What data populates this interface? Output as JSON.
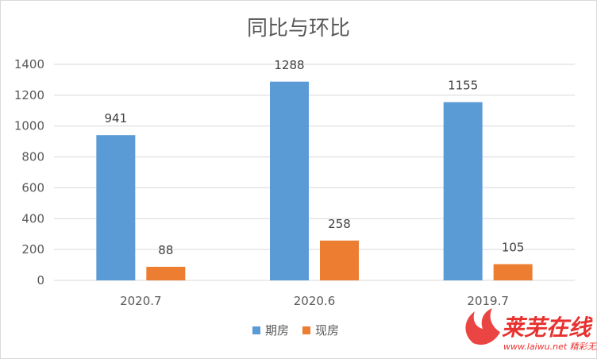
{
  "chart_data": {
    "type": "bar",
    "title": "同比与环比",
    "categories": [
      "2020.7",
      "2020.6",
      "2019.7"
    ],
    "series": [
      {
        "name": "期房",
        "values": [
          941,
          1288,
          1155
        ],
        "color": "#5b9bd5"
      },
      {
        "name": "现房",
        "values": [
          88,
          258,
          105
        ],
        "color": "#ed7d31"
      }
    ],
    "ylim": [
      0,
      1400
    ],
    "yticks": [
      0,
      200,
      400,
      600,
      800,
      1000,
      1200,
      1400
    ],
    "grid": true,
    "legend": "bottom"
  },
  "watermark": {
    "main": "莱芜在线",
    "sub": "www.laiwu.net 精彩无限"
  }
}
